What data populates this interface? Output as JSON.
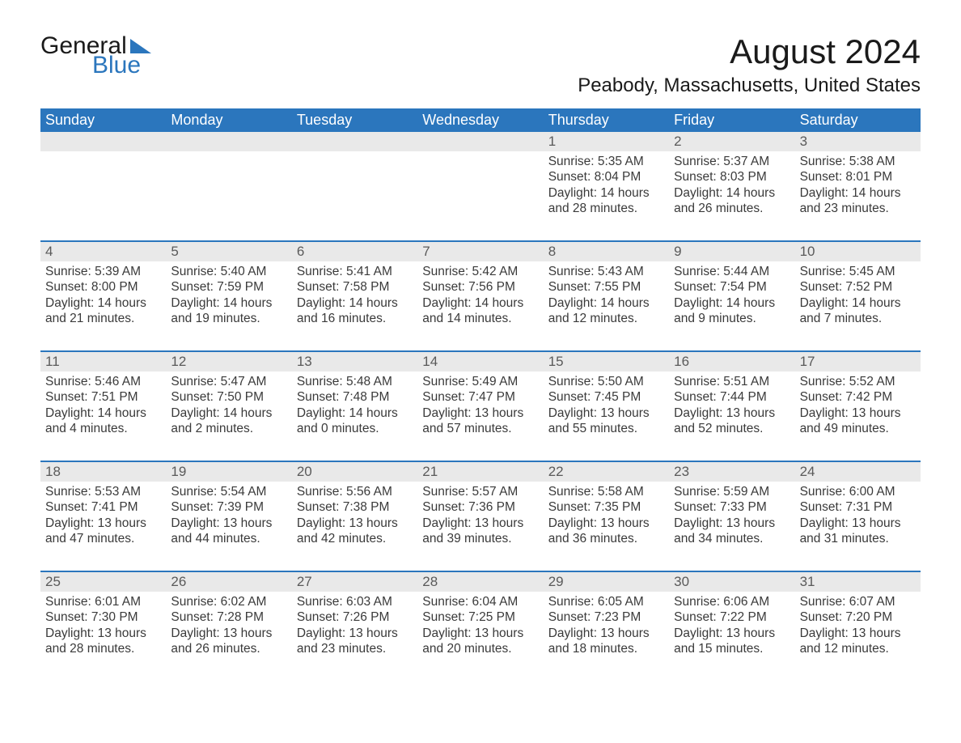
{
  "logo": {
    "text1": "General",
    "text2": "Blue"
  },
  "title": "August 2024",
  "location": "Peabody, Massachusetts, United States",
  "colors": {
    "header_bg": "#2b76bd",
    "header_text": "#ffffff",
    "daynum_bg": "#e9e9e9",
    "daynum_text": "#5a5a5a",
    "body_text": "#3a3a3a",
    "divider": "#2b76bd",
    "logo_accent": "#2b76bd"
  },
  "weekdays": [
    "Sunday",
    "Monday",
    "Tuesday",
    "Wednesday",
    "Thursday",
    "Friday",
    "Saturday"
  ],
  "weeks": [
    [
      null,
      null,
      null,
      null,
      {
        "n": "1",
        "sr": "5:35 AM",
        "ss": "8:04 PM",
        "dl": "14 hours and 28 minutes."
      },
      {
        "n": "2",
        "sr": "5:37 AM",
        "ss": "8:03 PM",
        "dl": "14 hours and 26 minutes."
      },
      {
        "n": "3",
        "sr": "5:38 AM",
        "ss": "8:01 PM",
        "dl": "14 hours and 23 minutes."
      }
    ],
    [
      {
        "n": "4",
        "sr": "5:39 AM",
        "ss": "8:00 PM",
        "dl": "14 hours and 21 minutes."
      },
      {
        "n": "5",
        "sr": "5:40 AM",
        "ss": "7:59 PM",
        "dl": "14 hours and 19 minutes."
      },
      {
        "n": "6",
        "sr": "5:41 AM",
        "ss": "7:58 PM",
        "dl": "14 hours and 16 minutes."
      },
      {
        "n": "7",
        "sr": "5:42 AM",
        "ss": "7:56 PM",
        "dl": "14 hours and 14 minutes."
      },
      {
        "n": "8",
        "sr": "5:43 AM",
        "ss": "7:55 PM",
        "dl": "14 hours and 12 minutes."
      },
      {
        "n": "9",
        "sr": "5:44 AM",
        "ss": "7:54 PM",
        "dl": "14 hours and 9 minutes."
      },
      {
        "n": "10",
        "sr": "5:45 AM",
        "ss": "7:52 PM",
        "dl": "14 hours and 7 minutes."
      }
    ],
    [
      {
        "n": "11",
        "sr": "5:46 AM",
        "ss": "7:51 PM",
        "dl": "14 hours and 4 minutes."
      },
      {
        "n": "12",
        "sr": "5:47 AM",
        "ss": "7:50 PM",
        "dl": "14 hours and 2 minutes."
      },
      {
        "n": "13",
        "sr": "5:48 AM",
        "ss": "7:48 PM",
        "dl": "14 hours and 0 minutes."
      },
      {
        "n": "14",
        "sr": "5:49 AM",
        "ss": "7:47 PM",
        "dl": "13 hours and 57 minutes."
      },
      {
        "n": "15",
        "sr": "5:50 AM",
        "ss": "7:45 PM",
        "dl": "13 hours and 55 minutes."
      },
      {
        "n": "16",
        "sr": "5:51 AM",
        "ss": "7:44 PM",
        "dl": "13 hours and 52 minutes."
      },
      {
        "n": "17",
        "sr": "5:52 AM",
        "ss": "7:42 PM",
        "dl": "13 hours and 49 minutes."
      }
    ],
    [
      {
        "n": "18",
        "sr": "5:53 AM",
        "ss": "7:41 PM",
        "dl": "13 hours and 47 minutes."
      },
      {
        "n": "19",
        "sr": "5:54 AM",
        "ss": "7:39 PM",
        "dl": "13 hours and 44 minutes."
      },
      {
        "n": "20",
        "sr": "5:56 AM",
        "ss": "7:38 PM",
        "dl": "13 hours and 42 minutes."
      },
      {
        "n": "21",
        "sr": "5:57 AM",
        "ss": "7:36 PM",
        "dl": "13 hours and 39 minutes."
      },
      {
        "n": "22",
        "sr": "5:58 AM",
        "ss": "7:35 PM",
        "dl": "13 hours and 36 minutes."
      },
      {
        "n": "23",
        "sr": "5:59 AM",
        "ss": "7:33 PM",
        "dl": "13 hours and 34 minutes."
      },
      {
        "n": "24",
        "sr": "6:00 AM",
        "ss": "7:31 PM",
        "dl": "13 hours and 31 minutes."
      }
    ],
    [
      {
        "n": "25",
        "sr": "6:01 AM",
        "ss": "7:30 PM",
        "dl": "13 hours and 28 minutes."
      },
      {
        "n": "26",
        "sr": "6:02 AM",
        "ss": "7:28 PM",
        "dl": "13 hours and 26 minutes."
      },
      {
        "n": "27",
        "sr": "6:03 AM",
        "ss": "7:26 PM",
        "dl": "13 hours and 23 minutes."
      },
      {
        "n": "28",
        "sr": "6:04 AM",
        "ss": "7:25 PM",
        "dl": "13 hours and 20 minutes."
      },
      {
        "n": "29",
        "sr": "6:05 AM",
        "ss": "7:23 PM",
        "dl": "13 hours and 18 minutes."
      },
      {
        "n": "30",
        "sr": "6:06 AM",
        "ss": "7:22 PM",
        "dl": "13 hours and 15 minutes."
      },
      {
        "n": "31",
        "sr": "6:07 AM",
        "ss": "7:20 PM",
        "dl": "13 hours and 12 minutes."
      }
    ]
  ],
  "labels": {
    "sunrise": "Sunrise: ",
    "sunset": "Sunset: ",
    "daylight": "Daylight: "
  }
}
